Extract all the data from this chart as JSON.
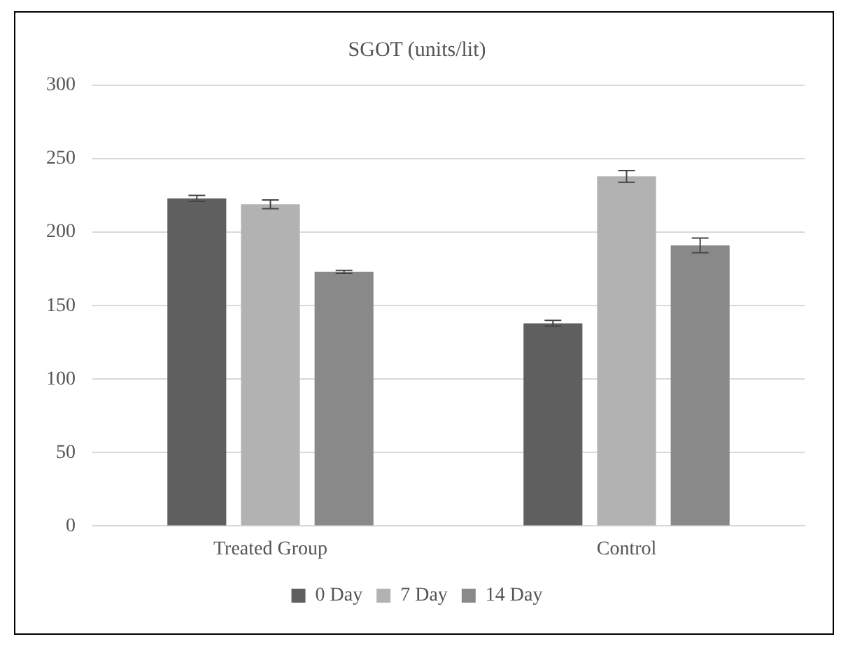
{
  "chart_data": {
    "type": "bar",
    "title": "SGOT (units/lit)",
    "categories": [
      "Treated Group",
      "Control"
    ],
    "series": [
      {
        "name": "0 Day",
        "color": "#5f5f5f",
        "values": [
          223,
          138
        ],
        "errors": [
          2,
          2
        ]
      },
      {
        "name": "7 Day",
        "color": "#b2b2b2",
        "values": [
          219,
          238
        ],
        "errors": [
          3,
          4
        ]
      },
      {
        "name": "14 Day",
        "color": "#898989",
        "values": [
          173,
          191
        ],
        "errors": [
          1,
          5
        ]
      }
    ],
    "ylim": [
      0,
      300
    ],
    "yticks": [
      0,
      50,
      100,
      150,
      200,
      250,
      300
    ],
    "grid": "y",
    "legend": "bottom"
  }
}
